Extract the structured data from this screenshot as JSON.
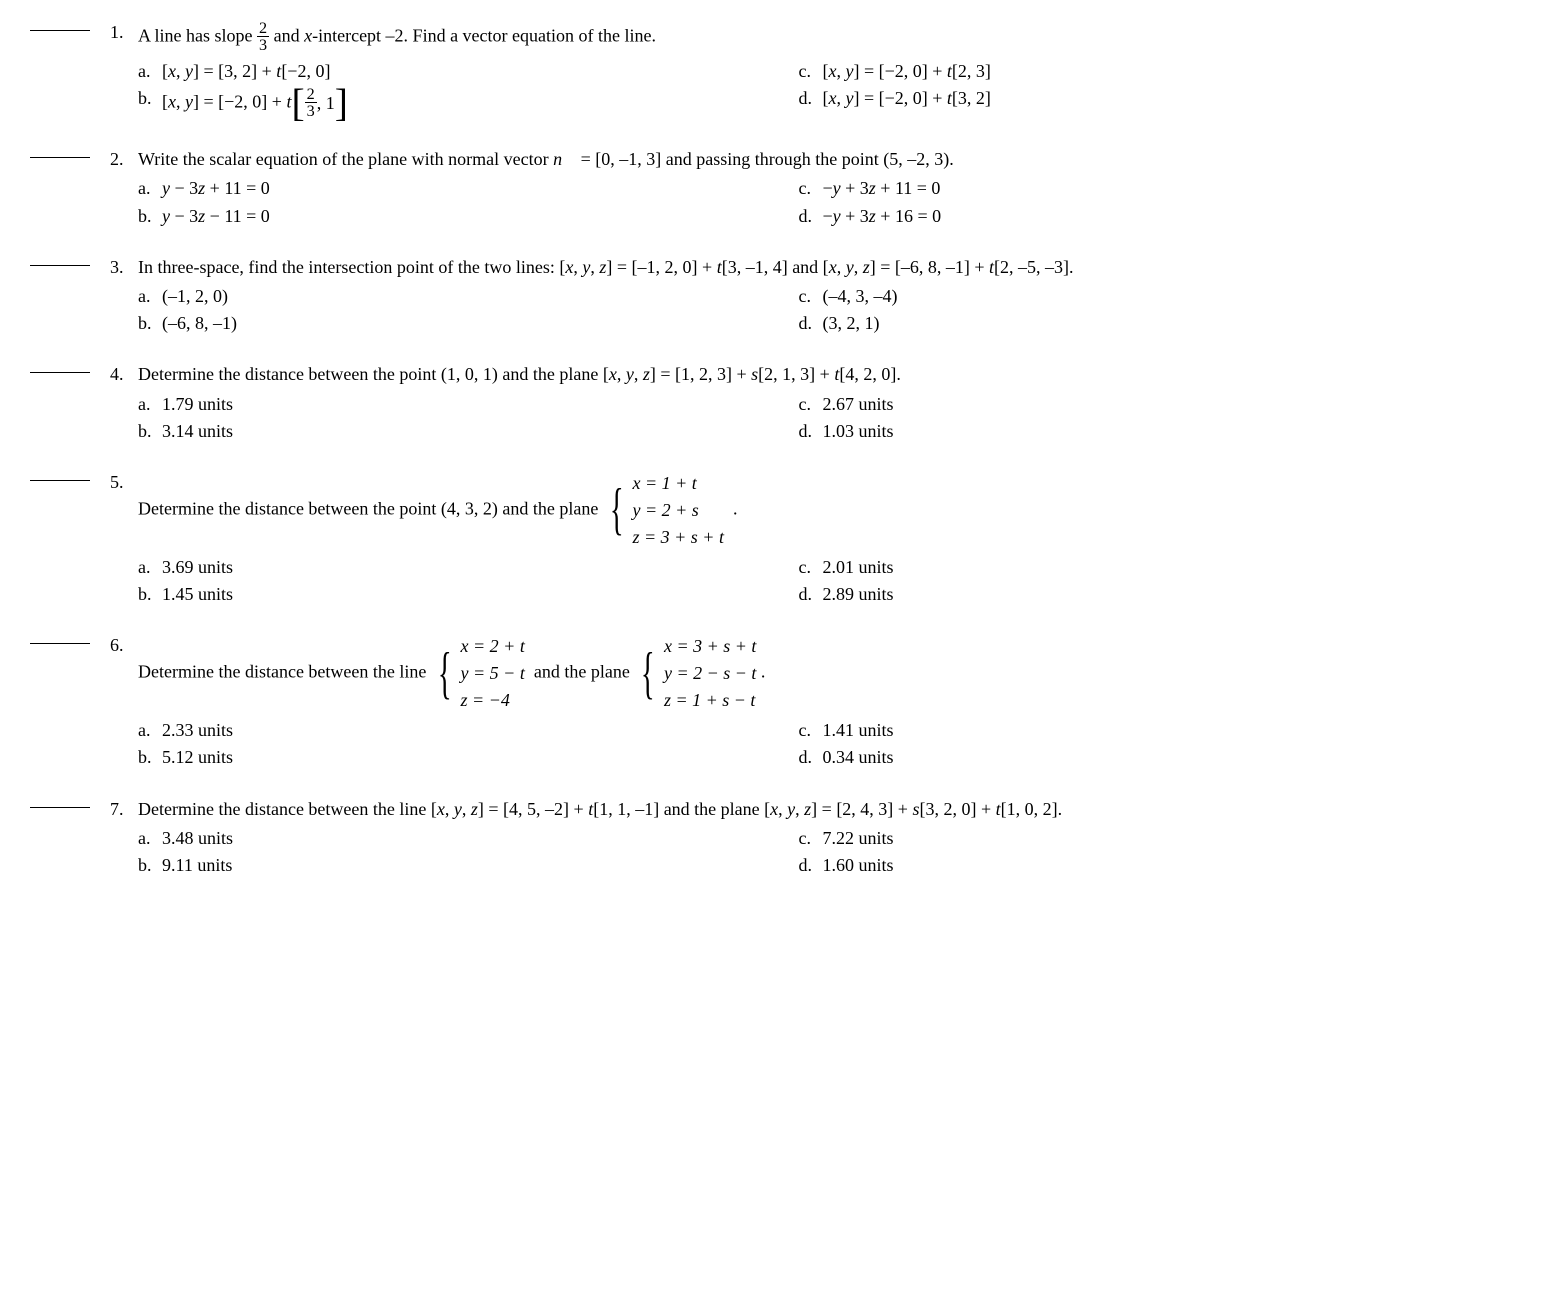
{
  "questions": [
    {
      "num": "1.",
      "text_html": "A line has slope <span class=\"frac\"><span class=\"num-t\">2</span><span class=\"den\">3</span></span> and <span class=\"ital\">x</span>-intercept –2. Find a vector equation of the line.",
      "a": "[<span class=\"ital\">x</span>, <span class=\"ital\">y</span>] = [3, 2] + <span class=\"ital\">t</span>[−2, 0]",
      "b": "[<span class=\"ital\">x</span>, <span class=\"ital\">y</span>] = [−2, 0] + <span class=\"ital\">t</span><span class=\"bigbracket\"><span class=\"bb-l\">[</span><span class=\"bb-inner\"><span class=\"frac\"><span class=\"num-t\">2</span><span class=\"den\">3</span></span>, 1</span><span class=\"bb-r\">]</span></span>",
      "c": "[<span class=\"ital\">x</span>, <span class=\"ital\">y</span>] = [−2, 0] + <span class=\"ital\">t</span>[2, 3]",
      "d": "[<span class=\"ital\">x</span>, <span class=\"ital\">y</span>] = [−2, 0] + <span class=\"ital\">t</span>[3, 2]"
    },
    {
      "num": "2.",
      "text_html": "Write the scalar equation of the plane with normal vector <span class=\"vecn\">n&#8407;</span> = [0, –1, 3] and passing through the point (5, –2, 3).",
      "a": "<span class=\"ital\">y</span> − 3<span class=\"ital\">z</span> + 11 = 0",
      "b": "<span class=\"ital\">y</span> − 3<span class=\"ital\">z</span> − 11 = 0",
      "c": "−<span class=\"ital\">y</span> + 3<span class=\"ital\">z</span> + 11 = 0",
      "d": "−<span class=\"ital\">y</span> + 3<span class=\"ital\">z</span> + 16 = 0"
    },
    {
      "num": "3.",
      "text_html": "In three-space, find the intersection point of the two lines: [<span class=\"ital\">x</span>, <span class=\"ital\">y</span>, <span class=\"ital\">z</span>] = [–1, 2, 0] + <span class=\"ital\">t</span>[3, –1, 4] and [<span class=\"ital\">x</span>, <span class=\"ital\">y</span>, <span class=\"ital\">z</span>] = [–6, 8, –1] + <span class=\"ital\">t</span>[2, –5, –3].",
      "a": "(–1, 2, 0)",
      "b": "(–6, 8, –1)",
      "c": "(–4, 3, –4)",
      "d": "(3, 2, 1)"
    },
    {
      "num": "4.",
      "text_html": "Determine the distance between the point (1, 0, 1) and the plane [<span class=\"ital\">x</span>, <span class=\"ital\">y</span>, <span class=\"ital\">z</span>] = [1, 2, 3] + <span class=\"ital\">s</span>[2, 1, 3] + <span class=\"ital\">t</span>[4, 2, 0].",
      "a": "1.79 units",
      "b": "3.14 units",
      "c": "2.67 units",
      "d": "1.03 units"
    },
    {
      "num": "5.",
      "text_html": "Determine the distance between the point (4, 3, 2) and the plane <span class=\"brace-sys\"><span class=\"brace\">{</span><span class=\"sys-rows\"><span>x = 1 + t</span><span>y = 2 + s</span><span>z = 3 + s + t</span></span></span>&nbsp;&nbsp;.",
      "a": "3.69 units",
      "b": "1.45 units",
      "c": "2.01 units",
      "d": "2.89 units"
    },
    {
      "num": "6.",
      "text_html": "Determine the distance between the line <span class=\"brace-sys\"><span class=\"brace\">{</span><span class=\"sys-rows\"><span>x = 2 + t</span><span>y = 5 − t</span><span>z = −4</span></span></span>&nbsp; and the plane <span class=\"brace-sys\"><span class=\"brace\">{</span><span class=\"sys-rows\"><span>x = 3 + s + t</span><span>y = 2 − s − t</span><span>z = 1 + s − t</span></span></span> .",
      "a": "2.33 units",
      "b": "5.12 units",
      "c": "1.41 units",
      "d": "0.34 units"
    },
    {
      "num": "7.",
      "text_html": "Determine the distance between the line [<span class=\"ital\">x</span>, <span class=\"ital\">y</span>, <span class=\"ital\">z</span>] = [4, 5, –2] + <span class=\"ital\">t</span>[1, 1, –1] and the plane [<span class=\"ital\">x</span>, <span class=\"ital\">y</span>, <span class=\"ital\">z</span>] = [2, 4, 3] + <span class=\"ital\">s</span>[3, 2, 0] + <span class=\"ital\">t</span>[1, 0, 2].",
      "a": "3.48 units",
      "b": "9.11 units",
      "c": "7.22 units",
      "d": "1.60 units"
    }
  ],
  "colors": {
    "text": "#000000",
    "bg": "#ffffff"
  },
  "fontsize": 18
}
